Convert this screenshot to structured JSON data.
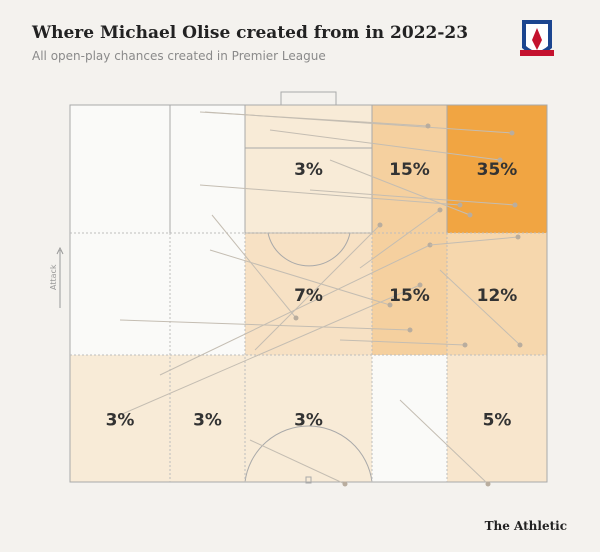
{
  "chart_data": {
    "type": "zone-map",
    "title": "Where Michael Olise created from in 2022-23",
    "subtitle": "All open-play chances created in Premier League",
    "direction_label": "Attack",
    "source": "The Athletic",
    "color": "#f0a038",
    "values": [
      3,
      15,
      35,
      7,
      15,
      12,
      3,
      3,
      3,
      5
    ],
    "value_labels": [
      "3%",
      "15%",
      "35%",
      "7%",
      "15%",
      "12%",
      "3%",
      "3%",
      "3%",
      "5%"
    ]
  }
}
